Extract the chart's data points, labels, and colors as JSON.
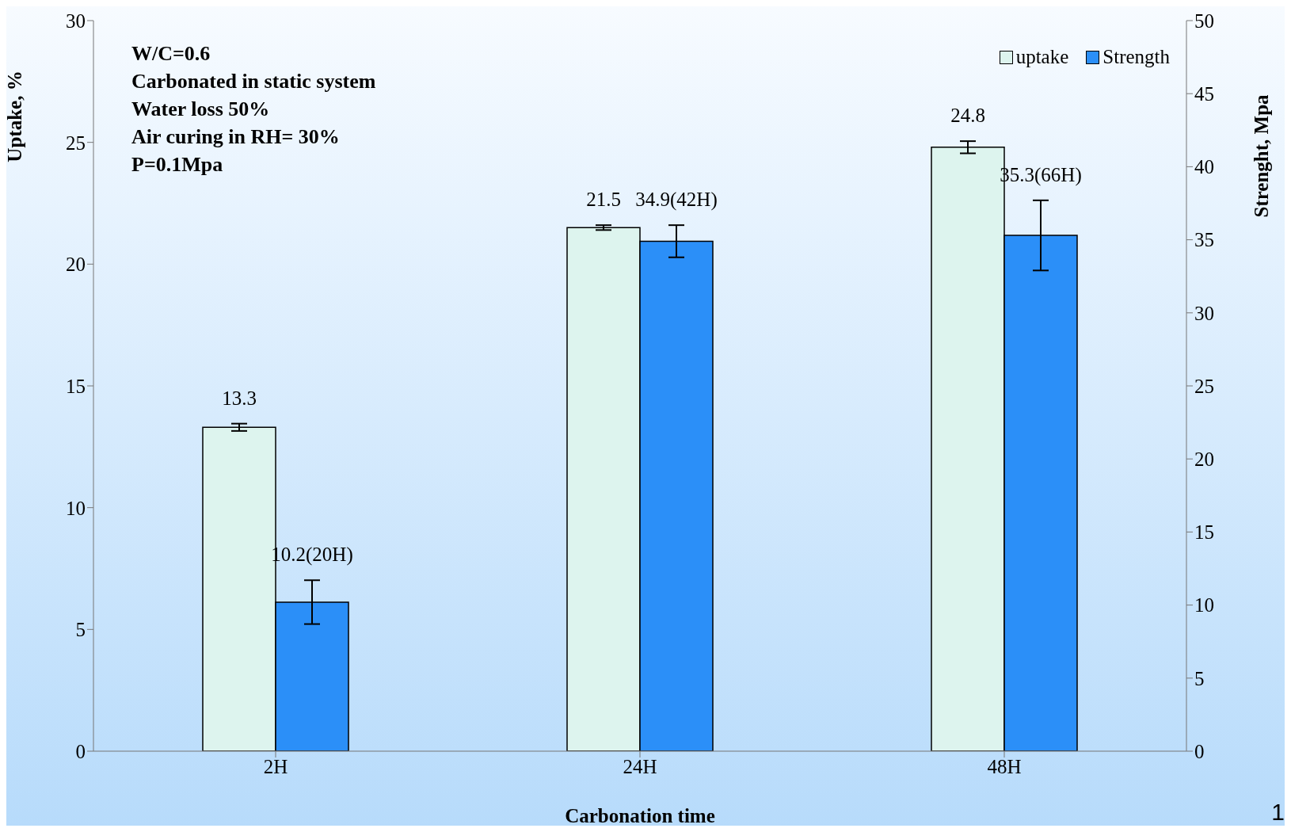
{
  "chart_data": {
    "type": "bar",
    "xlabel": "Carbonation time",
    "ylabel": "Uptake, %",
    "y2label": "Strenght, Mpa",
    "categories": [
      "2H",
      "24H",
      "48H"
    ],
    "series": [
      {
        "name": "uptake",
        "color": "#ddf4ee",
        "values": [
          13.3,
          21.5,
          24.8
        ],
        "errors": [
          0.15,
          0.1,
          0.25
        ],
        "value_labels": [
          "13.3",
          "21.5",
          "24.8"
        ]
      },
      {
        "name": "Strength",
        "color": "#2b8ff8",
        "axis": "y2",
        "values": [
          10.2,
          34.9,
          35.3
        ],
        "errors": [
          1.5,
          1.1,
          2.4
        ],
        "value_labels": [
          "10.2(20H)",
          "34.9(42H)",
          "35.3(66H)"
        ]
      }
    ],
    "ylim": [
      0,
      30
    ],
    "yticks": [
      0,
      5,
      10,
      15,
      20,
      25,
      30
    ],
    "y2lim": [
      0,
      50
    ],
    "y2ticks": [
      0,
      5,
      10,
      15,
      20,
      25,
      30,
      35,
      40,
      45,
      50
    ],
    "legend": "top right",
    "grid": false,
    "annotations": [
      "W/C=0.6",
      "Carbonated in static system",
      "Water loss 50%",
      "Air curing in RH= 30%",
      "P=0.1Mpa",
      "1"
    ]
  }
}
